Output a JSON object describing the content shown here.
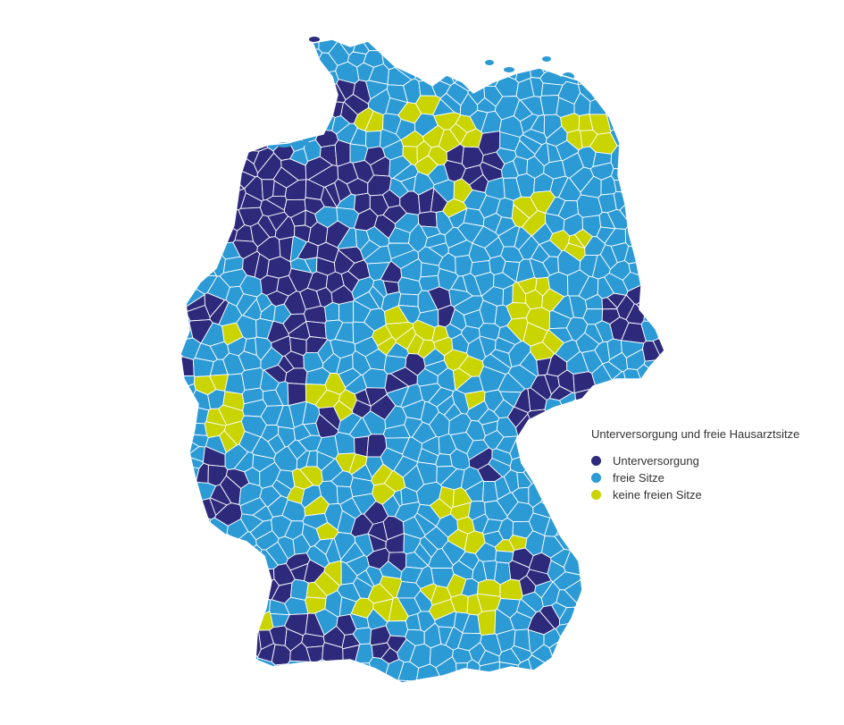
{
  "legend": {
    "title": "Unterversorgung und freie Hausarztsitze",
    "items": [
      {
        "key": "unter",
        "label": "Unterversorgung",
        "color": "#2d2a7c"
      },
      {
        "key": "frei",
        "label": "freie Sitze",
        "color": "#2c9ad5"
      },
      {
        "key": "keine",
        "label": "keine freien Sitze",
        "color": "#c9d400"
      }
    ]
  },
  "colors": {
    "border": "#ffffff",
    "background": "#ffffff"
  }
}
